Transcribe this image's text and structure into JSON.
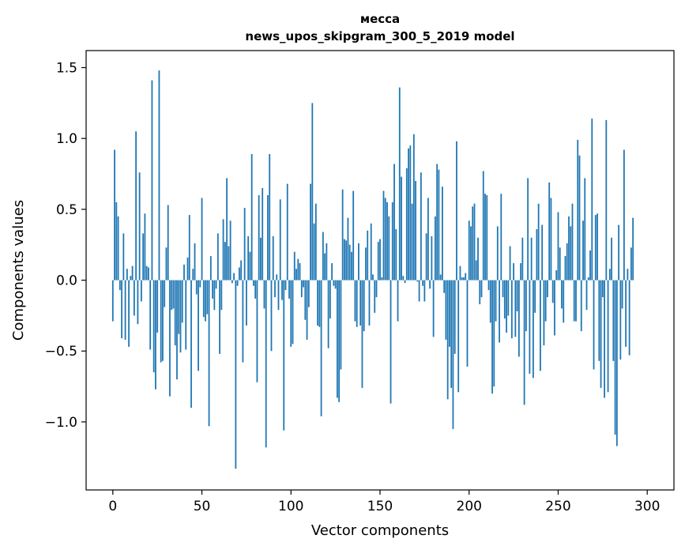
{
  "chart_data": {
    "type": "bar",
    "title": "месса",
    "subtitle": "news_upos_skipgram_300_5_2019 model",
    "xlabel": "Vector components",
    "ylabel": "Components values",
    "xlim": [
      -15,
      315
    ],
    "ylim": [
      -1.48,
      1.62
    ],
    "xticks": [
      0,
      50,
      100,
      150,
      200,
      250,
      300
    ],
    "yticks": [
      -1.0,
      -0.5,
      0.0,
      0.5,
      1.0,
      1.5
    ],
    "ytick_labels": [
      "−1.0",
      "−0.5",
      "0.0",
      "0.5",
      "1.0",
      "1.5"
    ],
    "xtick_labels": [
      "0",
      "50",
      "100",
      "150",
      "200",
      "250",
      "300"
    ],
    "bar_color": "#1f77b4",
    "values": [
      -0.29,
      0.92,
      0.55,
      0.45,
      -0.07,
      -0.41,
      0.33,
      -0.42,
      0.08,
      -0.47,
      0.03,
      0.1,
      -0.25,
      1.05,
      -0.31,
      0.76,
      -0.15,
      0.33,
      0.47,
      0.1,
      0.09,
      -0.49,
      1.41,
      -0.65,
      -0.77,
      -0.37,
      1.48,
      -0.58,
      -0.57,
      -0.19,
      0.23,
      0.53,
      -0.82,
      -0.21,
      -0.2,
      -0.46,
      -0.7,
      -0.38,
      -0.51,
      -0.3,
      0.11,
      -0.49,
      0.16,
      0.46,
      -0.9,
      0.08,
      0.26,
      -0.1,
      -0.64,
      -0.05,
      0.58,
      -0.26,
      -0.29,
      -0.24,
      -1.03,
      0.17,
      -0.13,
      -0.21,
      -0.06,
      0.33,
      -0.52,
      -0.21,
      0.43,
      0.27,
      0.72,
      0.24,
      0.42,
      -0.02,
      0.05,
      -1.33,
      -0.04,
      0.09,
      0.14,
      -0.58,
      0.51,
      -0.32,
      0.31,
      0.2,
      0.89,
      -0.04,
      -0.13,
      -0.72,
      0.6,
      0.3,
      0.65,
      -0.2,
      -1.18,
      0.6,
      0.89,
      -0.5,
      0.31,
      -0.12,
      0.04,
      -0.21,
      0.57,
      -0.14,
      -1.06,
      -0.07,
      0.68,
      -0.13,
      -0.47,
      -0.45,
      0.2,
      0.08,
      0.15,
      0.12,
      -0.12,
      -0.05,
      -0.28,
      -0.42,
      -0.19,
      0.68,
      1.25,
      0.4,
      0.54,
      -0.32,
      -0.33,
      -0.96,
      0.34,
      0.19,
      0.26,
      -0.48,
      -0.27,
      0.12,
      -0.04,
      -0.06,
      -0.83,
      -0.86,
      -0.63,
      0.64,
      0.29,
      0.28,
      0.44,
      0.25,
      0.2,
      0.63,
      -0.29,
      -0.33,
      0.26,
      -0.32,
      -0.76,
      -0.36,
      0.23,
      0.35,
      -0.32,
      0.4,
      0.04,
      -0.23,
      -0.12,
      0.27,
      0.29,
      0.02,
      0.63,
      0.58,
      0.55,
      0.45,
      -0.87,
      0.55,
      0.82,
      0.36,
      -0.29,
      1.36,
      0.73,
      0.03,
      -0.02,
      0.79,
      0.93,
      0.95,
      0.54,
      1.03,
      0.7,
      -0.01,
      -0.15,
      0.76,
      -0.04,
      -0.15,
      0.33,
      0.58,
      -0.06,
      0.31,
      -0.4,
      0.45,
      0.82,
      0.78,
      0.04,
      0.66,
      -0.09,
      -0.42,
      -0.84,
      -0.47,
      -0.76,
      -1.05,
      -0.52,
      0.98,
      -0.79,
      0.1,
      0.02,
      0.02,
      0.05,
      -0.61,
      0.42,
      0.38,
      0.52,
      0.54,
      0.14,
      0.3,
      -0.17,
      -0.12,
      0.77,
      0.61,
      0.6,
      -0.07,
      -0.3,
      -0.8,
      -0.75,
      -0.29,
      0.38,
      -0.44,
      0.61,
      -0.12,
      -0.27,
      -0.37,
      -0.25,
      0.24,
      -0.41,
      0.12,
      -0.4,
      -0.22,
      -0.54,
      0.12,
      0.3,
      -0.88,
      -0.36,
      0.72,
      -0.66,
      0.3,
      -0.69,
      -0.23,
      0.36,
      0.54,
      -0.64,
      0.39,
      -0.46,
      -0.29,
      -0.12,
      0.69,
      0.58,
      -0.16,
      -0.39,
      0.07,
      0.48,
      0.23,
      -0.2,
      -0.3,
      0.17,
      0.26,
      0.45,
      0.38,
      0.54,
      -0.29,
      -0.29,
      0.99,
      0.88,
      -0.36,
      0.42,
      0.72,
      -0.21,
      0.02,
      0.21,
      1.14,
      -0.63,
      0.46,
      0.47,
      -0.57,
      -0.76,
      -0.12,
      -0.83,
      1.13,
      -0.79,
      0.08,
      0.3,
      -0.57,
      -1.09,
      -1.17,
      0.39,
      -0.56,
      -0.2,
      0.92,
      -0.47,
      0.08,
      -0.53,
      0.23,
      0.44
    ]
  }
}
